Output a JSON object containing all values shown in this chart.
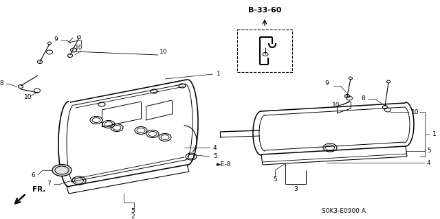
{
  "bg_color": "#ffffff",
  "fig_width": 6.4,
  "fig_height": 3.19,
  "ref_code": "B-33-60",
  "part_number": "S0K3-E0900 A",
  "cross_ref": "E-8",
  "arrow_label": "FR."
}
